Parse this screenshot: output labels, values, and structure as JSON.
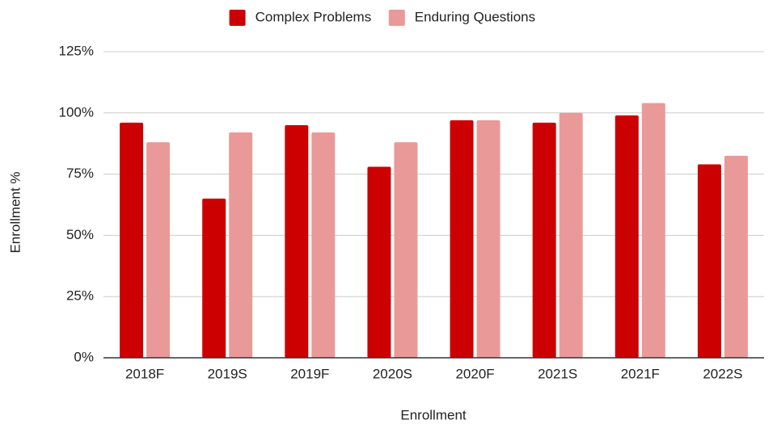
{
  "chart_data": {
    "type": "bar",
    "xlabel": "Enrollment",
    "ylabel": "Enrollment %",
    "categories": [
      "2018F",
      "2019S",
      "2019F",
      "2020S",
      "2020F",
      "2021S",
      "2021F",
      "2022S"
    ],
    "series": [
      {
        "name": "Complex Problems",
        "color": "#cc0000",
        "values": [
          96,
          65,
          95,
          78,
          97,
          96,
          99,
          79
        ]
      },
      {
        "name": "Enduring Questions",
        "color": "#ea9999",
        "values": [
          88,
          92,
          92,
          88,
          97,
          100,
          104,
          82.5
        ]
      }
    ],
    "ylim": [
      0,
      125
    ],
    "yticks": [
      {
        "value": 0,
        "label": "0%"
      },
      {
        "value": 25,
        "label": "25%"
      },
      {
        "value": 50,
        "label": "50%"
      },
      {
        "value": 75,
        "label": "75%"
      },
      {
        "value": 100,
        "label": "100%"
      },
      {
        "value": 125,
        "label": "125%"
      }
    ],
    "grid": true,
    "legend": "top"
  }
}
